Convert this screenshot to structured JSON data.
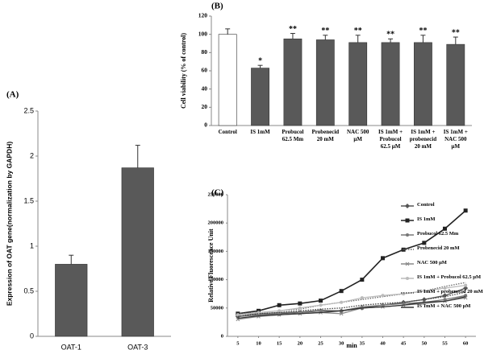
{
  "chart_data": [
    {
      "type": "bar",
      "panel": "(A)",
      "ylabel": "Expression of OAT gene(normalization by GAPDH)",
      "categories": [
        "OAT-1",
        "OAT-3"
      ],
      "values": [
        0.8,
        1.87
      ],
      "errors": [
        0.1,
        0.25
      ],
      "color": "#595959",
      "ylim": [
        0,
        2.5
      ],
      "yticks": [
        0,
        0.5,
        1,
        1.5,
        2,
        2.5
      ]
    },
    {
      "type": "bar",
      "panel": "(B)",
      "ylabel": "Cell viability (% of control)",
      "categories": [
        "Control",
        "IS 1mM",
        "Probucol 62.5 Mm",
        "Probenecid 20 mM",
        "NAC 500 μM",
        "IS 1mM + Probucol 62.5 μM",
        "IS 1mM + probenecid 20 mM",
        "IS 1mM + NAC 500 μM"
      ],
      "values": [
        100,
        63,
        95,
        94,
        91,
        91,
        91,
        89
      ],
      "errors": [
        6,
        3,
        6,
        5,
        8,
        4,
        8,
        8
      ],
      "colors": [
        "#ffffff",
        "#595959",
        "#595959",
        "#595959",
        "#595959",
        "#595959",
        "#595959",
        "#595959"
      ],
      "significance": [
        null,
        "*",
        "**",
        "**",
        "**",
        "**",
        "**",
        "**"
      ],
      "ylim": [
        0,
        120
      ],
      "yticks": [
        0,
        20,
        40,
        60,
        80,
        100,
        120
      ]
    },
    {
      "type": "line",
      "panel": "(C)",
      "xlabel": "min",
      "ylabel": "Relative Fluorescence Unit",
      "x": [
        5,
        10,
        15,
        20,
        25,
        30,
        35,
        40,
        45,
        50,
        55,
        60
      ],
      "xlim": [
        2.5,
        62.5
      ],
      "xticks": [
        5,
        10,
        15,
        20,
        25,
        30,
        35,
        40,
        45,
        50,
        55,
        60
      ],
      "ylim": [
        0,
        250000
      ],
      "yticks": [
        0,
        50000,
        100000,
        150000,
        200000,
        250000
      ],
      "series": [
        {
          "name": "Control",
          "color": "#555555",
          "dash": "solid",
          "marker": "diamond",
          "values": [
            35000,
            38000,
            40000,
            42000,
            45000,
            45000,
            50000,
            55000,
            60000,
            65000,
            72000,
            85000
          ]
        },
        {
          "name": "IS 1mM",
          "color": "#222222",
          "dash": "solid",
          "marker": "square",
          "values": [
            40000,
            45000,
            55000,
            58000,
            63000,
            80000,
            100000,
            138000,
            153000,
            165000,
            190000,
            222000
          ]
        },
        {
          "name": "Probucol  62.5 Mm",
          "color": "#777777",
          "dash": "solid",
          "marker": "circle",
          "values": [
            38000,
            40000,
            42000,
            43000,
            46000,
            45000,
            52000,
            55000,
            58000,
            60000,
            65000,
            72000
          ]
        },
        {
          "name": "Probenecid 20 mM",
          "color": "#666666",
          "dash": "dotted",
          "marker": "none",
          "values": [
            40000,
            42000,
            45000,
            48000,
            55000,
            60000,
            65000,
            70000,
            75000,
            80000,
            88000,
            95000
          ]
        },
        {
          "name": "NAC 500 μM",
          "color": "#888888",
          "dash": "solid",
          "marker": "cross",
          "values": [
            30000,
            35000,
            38000,
            40000,
            42000,
            40000,
            50000,
            52000,
            55000,
            58000,
            62000,
            68000
          ]
        },
        {
          "name": "IS 1mM + Probucol  62.5 μM",
          "color": "#bbbbbb",
          "dash": "solid",
          "marker": "circle",
          "values": [
            38000,
            42000,
            45000,
            50000,
            55000,
            60000,
            68000,
            72000,
            75000,
            80000,
            85000,
            90000
          ]
        },
        {
          "name": "IS 1mM + probenecid 20 mM",
          "color": "#444444",
          "dash": "dotted",
          "marker": "none",
          "values": [
            35000,
            40000,
            42000,
            45000,
            48000,
            50000,
            55000,
            58000,
            60000,
            65000,
            70000,
            78000
          ]
        },
        {
          "name": "IS 1mM + NAC 500 μM",
          "color": "#333333",
          "dash": "solid",
          "marker": "none",
          "values": [
            32000,
            36000,
            38000,
            40000,
            42000,
            45000,
            50000,
            52000,
            55000,
            60000,
            62000,
            70000
          ]
        }
      ]
    }
  ]
}
